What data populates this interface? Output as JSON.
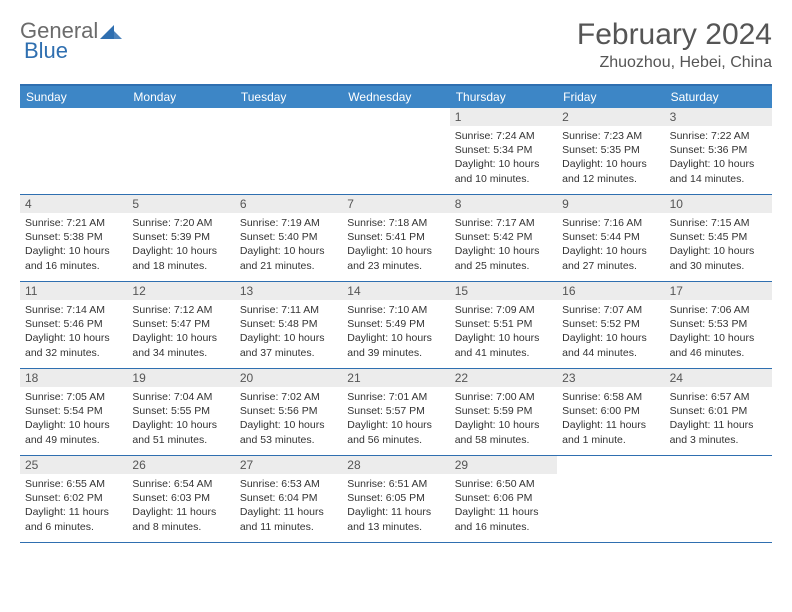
{
  "logo": {
    "text1": "General",
    "text2": "Blue"
  },
  "title": "February 2024",
  "location": "Zhuozhou, Hebei, China",
  "colors": {
    "header_bar": "#3d86c6",
    "border": "#2f6fb0",
    "daynum_bg": "#ececec",
    "text": "#333333",
    "title_text": "#555555"
  },
  "weekdays": [
    "Sunday",
    "Monday",
    "Tuesday",
    "Wednesday",
    "Thursday",
    "Friday",
    "Saturday"
  ],
  "weeks": [
    [
      null,
      null,
      null,
      null,
      {
        "n": "1",
        "sr": "7:24 AM",
        "ss": "5:34 PM",
        "dl": "10 hours and 10 minutes."
      },
      {
        "n": "2",
        "sr": "7:23 AM",
        "ss": "5:35 PM",
        "dl": "10 hours and 12 minutes."
      },
      {
        "n": "3",
        "sr": "7:22 AM",
        "ss": "5:36 PM",
        "dl": "10 hours and 14 minutes."
      }
    ],
    [
      {
        "n": "4",
        "sr": "7:21 AM",
        "ss": "5:38 PM",
        "dl": "10 hours and 16 minutes."
      },
      {
        "n": "5",
        "sr": "7:20 AM",
        "ss": "5:39 PM",
        "dl": "10 hours and 18 minutes."
      },
      {
        "n": "6",
        "sr": "7:19 AM",
        "ss": "5:40 PM",
        "dl": "10 hours and 21 minutes."
      },
      {
        "n": "7",
        "sr": "7:18 AM",
        "ss": "5:41 PM",
        "dl": "10 hours and 23 minutes."
      },
      {
        "n": "8",
        "sr": "7:17 AM",
        "ss": "5:42 PM",
        "dl": "10 hours and 25 minutes."
      },
      {
        "n": "9",
        "sr": "7:16 AM",
        "ss": "5:44 PM",
        "dl": "10 hours and 27 minutes."
      },
      {
        "n": "10",
        "sr": "7:15 AM",
        "ss": "5:45 PM",
        "dl": "10 hours and 30 minutes."
      }
    ],
    [
      {
        "n": "11",
        "sr": "7:14 AM",
        "ss": "5:46 PM",
        "dl": "10 hours and 32 minutes."
      },
      {
        "n": "12",
        "sr": "7:12 AM",
        "ss": "5:47 PM",
        "dl": "10 hours and 34 minutes."
      },
      {
        "n": "13",
        "sr": "7:11 AM",
        "ss": "5:48 PM",
        "dl": "10 hours and 37 minutes."
      },
      {
        "n": "14",
        "sr": "7:10 AM",
        "ss": "5:49 PM",
        "dl": "10 hours and 39 minutes."
      },
      {
        "n": "15",
        "sr": "7:09 AM",
        "ss": "5:51 PM",
        "dl": "10 hours and 41 minutes."
      },
      {
        "n": "16",
        "sr": "7:07 AM",
        "ss": "5:52 PM",
        "dl": "10 hours and 44 minutes."
      },
      {
        "n": "17",
        "sr": "7:06 AM",
        "ss": "5:53 PM",
        "dl": "10 hours and 46 minutes."
      }
    ],
    [
      {
        "n": "18",
        "sr": "7:05 AM",
        "ss": "5:54 PM",
        "dl": "10 hours and 49 minutes."
      },
      {
        "n": "19",
        "sr": "7:04 AM",
        "ss": "5:55 PM",
        "dl": "10 hours and 51 minutes."
      },
      {
        "n": "20",
        "sr": "7:02 AM",
        "ss": "5:56 PM",
        "dl": "10 hours and 53 minutes."
      },
      {
        "n": "21",
        "sr": "7:01 AM",
        "ss": "5:57 PM",
        "dl": "10 hours and 56 minutes."
      },
      {
        "n": "22",
        "sr": "7:00 AM",
        "ss": "5:59 PM",
        "dl": "10 hours and 58 minutes."
      },
      {
        "n": "23",
        "sr": "6:58 AM",
        "ss": "6:00 PM",
        "dl": "11 hours and 1 minute."
      },
      {
        "n": "24",
        "sr": "6:57 AM",
        "ss": "6:01 PM",
        "dl": "11 hours and 3 minutes."
      }
    ],
    [
      {
        "n": "25",
        "sr": "6:55 AM",
        "ss": "6:02 PM",
        "dl": "11 hours and 6 minutes."
      },
      {
        "n": "26",
        "sr": "6:54 AM",
        "ss": "6:03 PM",
        "dl": "11 hours and 8 minutes."
      },
      {
        "n": "27",
        "sr": "6:53 AM",
        "ss": "6:04 PM",
        "dl": "11 hours and 11 minutes."
      },
      {
        "n": "28",
        "sr": "6:51 AM",
        "ss": "6:05 PM",
        "dl": "11 hours and 13 minutes."
      },
      {
        "n": "29",
        "sr": "6:50 AM",
        "ss": "6:06 PM",
        "dl": "11 hours and 16 minutes."
      },
      null,
      null
    ]
  ],
  "labels": {
    "sunrise": "Sunrise:",
    "sunset": "Sunset:",
    "daylight": "Daylight:"
  }
}
